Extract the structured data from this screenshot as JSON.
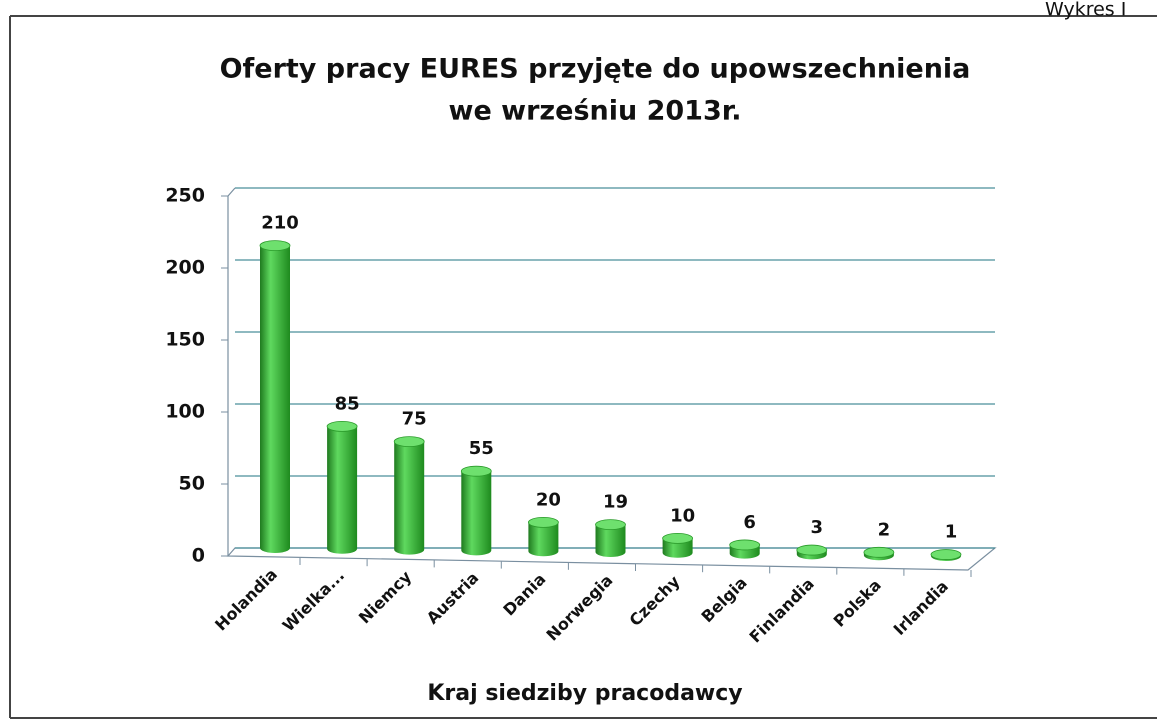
{
  "page_label": "Wykres I",
  "chart_data": {
    "type": "bar",
    "title": [
      "Oferty pracy EURES przyjęte do upowszechnienia",
      "we wrześniu 2013r."
    ],
    "x_label": "Kraj siedziby pracodawcy",
    "categories": [
      "Holandia",
      "Wielka...",
      "Niemcy",
      "Austria",
      "Dania",
      "Norwegia",
      "Czechy",
      "Belgia",
      "Finlandia",
      "Polska",
      "Irlandia"
    ],
    "values": [
      210,
      85,
      75,
      55,
      20,
      19,
      10,
      6,
      3,
      2,
      1
    ],
    "color": "#3cb43c",
    "ylim": [
      0,
      250
    ],
    "yticks": [
      0,
      50,
      100,
      150,
      200,
      250
    ],
    "grid": true
  }
}
